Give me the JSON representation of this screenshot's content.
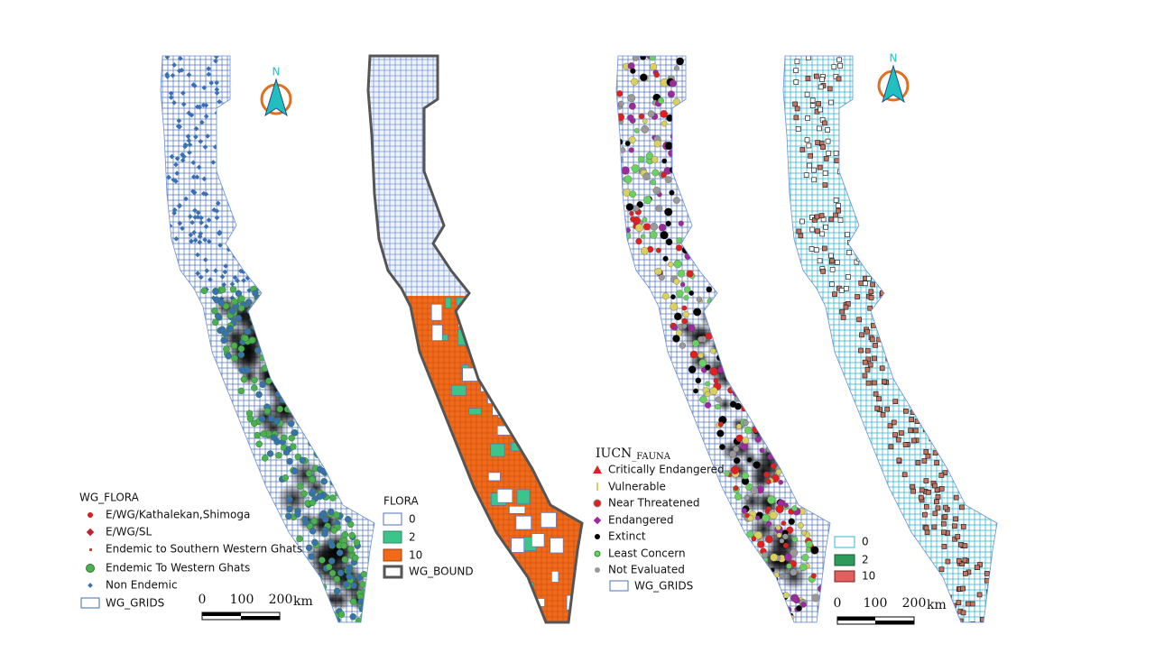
{
  "north_arrows": [
    "N",
    "N"
  ],
  "flora_points_legend": {
    "title": "WG_FLORA",
    "items": [
      "E/WG/Kathalekan,Shimoga",
      "E/WG/SL",
      "Endemic to Southern Western Ghats",
      "Endemic To Western Ghats",
      "Non Endemic",
      "WG_GRIDS"
    ]
  },
  "flora_density_legend": {
    "title": "FLORA",
    "items": [
      "0",
      "2",
      "10",
      "WG_BOUND"
    ]
  },
  "fauna_legend": {
    "title": "IUCN",
    "title_sub": "_FAUNA",
    "items": [
      "Critically Endangered",
      "Vulnerable",
      "Near Threatened",
      "Endangered",
      "Extinct",
      "Least Concern",
      "Not Evaluated",
      "WG_GRIDS"
    ]
  },
  "fauna_density_legend": {
    "items": [
      "0",
      "2",
      "10"
    ]
  },
  "scale_bars": [
    {
      "labels": [
        "0",
        "100",
        "200"
      ],
      "unit": "km"
    },
    {
      "labels": [
        "0",
        "100",
        "200"
      ],
      "unit": "km"
    }
  ]
}
